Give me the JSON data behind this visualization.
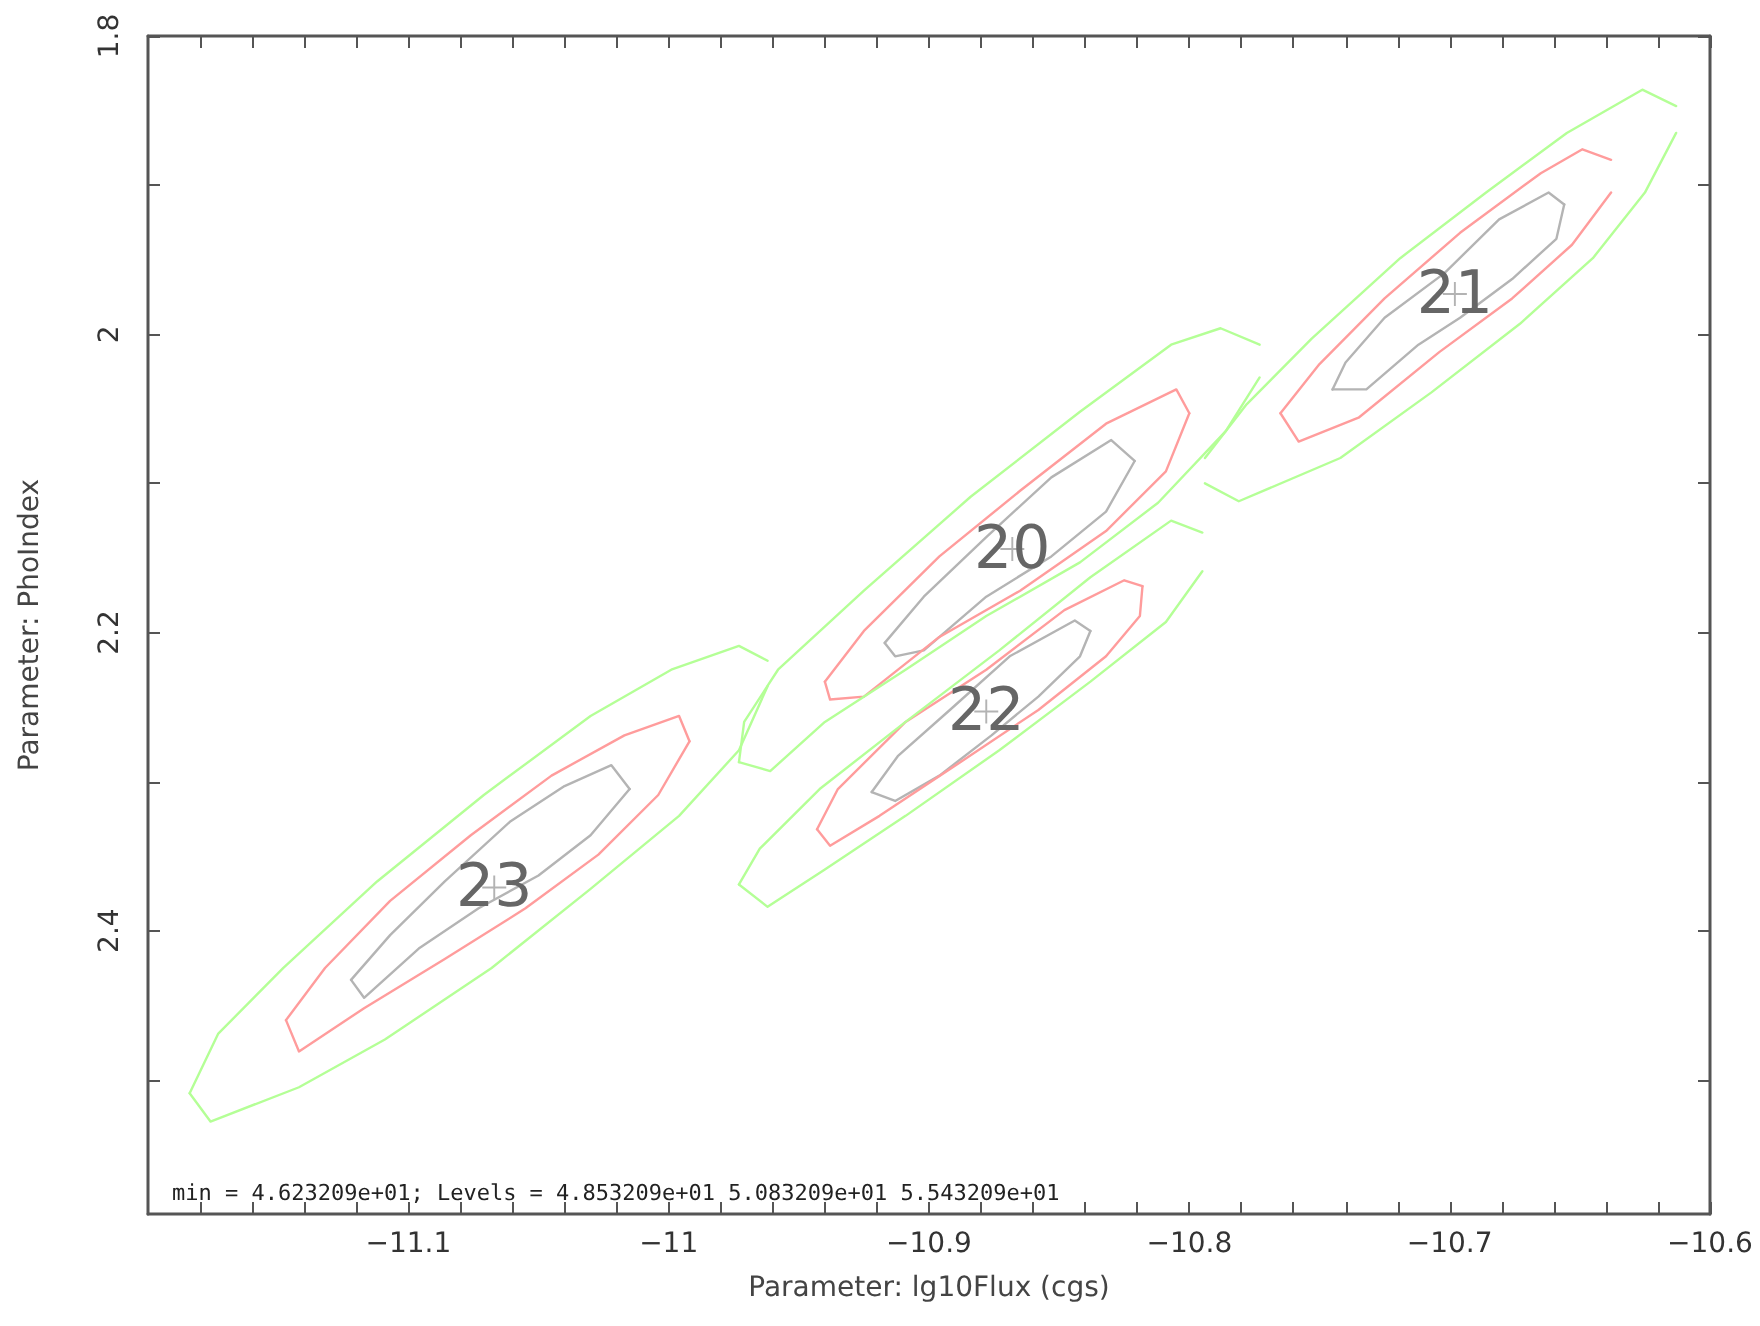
{
  "chart_data": {
    "type": "line",
    "xlabel": "Parameter: lg10Flux (cgs)",
    "ylabel": "Parameter: PhoIndex",
    "marker": "none",
    "grid": false,
    "xlim": [
      -11.2,
      -10.6
    ],
    "ylim": [
      2.59,
      1.8
    ],
    "xticks": [
      {
        "value": -11.18,
        "label": null
      },
      {
        "value": -11.16,
        "label": null
      },
      {
        "value": -11.14,
        "label": null
      },
      {
        "value": -11.12,
        "label": null
      },
      {
        "value": -11.1,
        "label": "−11.1"
      },
      {
        "value": -11.08,
        "label": null
      },
      {
        "value": -11.06,
        "label": null
      },
      {
        "value": -11.04,
        "label": null
      },
      {
        "value": -11.02,
        "label": null
      },
      {
        "value": -11,
        "label": "−11"
      },
      {
        "value": -10.98,
        "label": null
      },
      {
        "value": -10.96,
        "label": null
      },
      {
        "value": -10.94,
        "label": null
      },
      {
        "value": -10.92,
        "label": null
      },
      {
        "value": -10.9,
        "label": "−10.9"
      },
      {
        "value": -10.88,
        "label": null
      },
      {
        "value": -10.86,
        "label": null
      },
      {
        "value": -10.84,
        "label": null
      },
      {
        "value": -10.82,
        "label": null
      },
      {
        "value": -10.8,
        "label": "−10.8"
      },
      {
        "value": -10.78,
        "label": null
      },
      {
        "value": -10.76,
        "label": null
      },
      {
        "value": -10.74,
        "label": null
      },
      {
        "value": -10.72,
        "label": null
      },
      {
        "value": -10.7,
        "label": "−10.7"
      },
      {
        "value": -10.68,
        "label": null
      },
      {
        "value": -10.66,
        "label": null
      },
      {
        "value": -10.64,
        "label": null
      },
      {
        "value": -10.62,
        "label": null
      },
      {
        "value": -10.6,
        "label": "−10.6"
      }
    ],
    "yticks": [
      1.8,
      {
        "value": 1.9,
        "label": null
      },
      2,
      {
        "value": 2.1,
        "label": null
      },
      2.2,
      {
        "value": 2.3,
        "label": null
      },
      2.4,
      {
        "value": 2.5,
        "label": null
      }
    ],
    "series": [
      {
        "color": "#b4b4b4",
        "x": [
          -11.122,
          -11.117,
          -11.096,
          -11.073,
          -11.05,
          -11.03,
          -11.015
        ],
        "values": [
          2.433,
          2.445,
          2.412,
          2.385,
          2.363,
          2.336,
          2.305
        ]
      },
      {
        "color": "#b4b4b4",
        "x": [
          -11.122,
          -11.107,
          -11.086,
          -11.061,
          -11.04,
          -11.022,
          -11.015
        ],
        "values": [
          2.433,
          2.403,
          2.367,
          2.327,
          2.303,
          2.289,
          2.305
        ]
      },
      {
        "color": "#ff9c9c",
        "x": [
          -11.147,
          -11.142,
          -11.117,
          -11.086,
          -11.055,
          -11.027,
          -11.004,
          -10.992
        ],
        "values": [
          2.46,
          2.481,
          2.452,
          2.419,
          2.385,
          2.349,
          2.309,
          2.273
        ]
      },
      {
        "color": "#ff9c9c",
        "x": [
          -11.147,
          -11.132,
          -11.107,
          -11.076,
          -11.045,
          -11.017,
          -10.996,
          -10.992
        ],
        "values": [
          2.46,
          2.425,
          2.38,
          2.336,
          2.296,
          2.269,
          2.256,
          2.273
        ]
      },
      {
        "color": "#b4ff96",
        "x": [
          -11.184,
          -11.176,
          -11.142,
          -11.109,
          -11.068,
          -11.03,
          -10.996,
          -10.973,
          -10.962
        ],
        "values": [
          2.509,
          2.528,
          2.505,
          2.473,
          2.425,
          2.372,
          2.323,
          2.279,
          2.236
        ]
      },
      {
        "color": "#b4ff96",
        "x": [
          -11.184,
          -11.173,
          -11.148,
          -11.112,
          -11.071,
          -11.03,
          -10.999,
          -10.973,
          -10.962
        ],
        "values": [
          2.509,
          2.469,
          2.425,
          2.367,
          2.309,
          2.256,
          2.225,
          2.209,
          2.219
        ]
      },
      {
        "color": "#b4b4b4",
        "x": [
          -10.917,
          -10.913,
          -10.902,
          -10.878,
          -10.853,
          -10.832,
          -10.821
        ],
        "values": [
          2.207,
          2.216,
          2.212,
          2.176,
          2.149,
          2.119,
          2.085
        ]
      },
      {
        "color": "#b4b4b4",
        "x": [
          -10.917,
          -10.902,
          -10.878,
          -10.853,
          -10.83,
          -10.821
        ],
        "values": [
          2.207,
          2.176,
          2.136,
          2.096,
          2.071,
          2.085
        ]
      },
      {
        "color": "#ff9c9c",
        "x": [
          -10.94,
          -10.938,
          -10.925,
          -10.896,
          -10.865,
          -10.832,
          -10.809,
          -10.8
        ],
        "values": [
          2.233,
          2.245,
          2.243,
          2.203,
          2.172,
          2.132,
          2.092,
          2.053
        ]
      },
      {
        "color": "#ff9c9c",
        "x": [
          -10.94,
          -10.925,
          -10.896,
          -10.865,
          -10.832,
          -10.805,
          -10.8
        ],
        "values": [
          2.233,
          2.199,
          2.149,
          2.105,
          2.06,
          2.037,
          2.053
        ]
      },
      {
        "color": "#b4ff96",
        "x": [
          -10.973,
          -10.961,
          -10.94,
          -10.909,
          -10.878,
          -10.842,
          -10.812,
          -10.786,
          -10.773
        ],
        "values": [
          2.287,
          2.293,
          2.26,
          2.225,
          2.189,
          2.153,
          2.113,
          2.065,
          2.029
        ]
      },
      {
        "color": "#b4ff96",
        "x": [
          -10.973,
          -10.971,
          -10.958,
          -10.925,
          -10.884,
          -10.842,
          -10.807,
          -10.788,
          -10.773
        ],
        "values": [
          2.287,
          2.26,
          2.225,
          2.172,
          2.109,
          2.052,
          2.007,
          1.996,
          2.007
        ]
      },
      {
        "color": "#b4b4b4",
        "x": [
          -10.922,
          -10.913,
          -10.896,
          -10.876,
          -10.858,
          -10.842,
          -10.838
        ],
        "values": [
          2.307,
          2.313,
          2.296,
          2.269,
          2.243,
          2.216,
          2.199
        ]
      },
      {
        "color": "#b4b4b4",
        "x": [
          -10.922,
          -10.912,
          -10.892,
          -10.869,
          -10.844,
          -10.838
        ],
        "values": [
          2.307,
          2.283,
          2.252,
          2.216,
          2.192,
          2.199
        ]
      },
      {
        "color": "#ff9c9c",
        "x": [
          -10.943,
          -10.938,
          -10.919,
          -10.888,
          -10.858,
          -10.832,
          -10.819,
          -10.818
        ],
        "values": [
          2.332,
          2.343,
          2.323,
          2.287,
          2.252,
          2.216,
          2.189,
          2.169
        ]
      },
      {
        "color": "#ff9c9c",
        "x": [
          -10.943,
          -10.935,
          -10.909,
          -10.878,
          -10.848,
          -10.825,
          -10.818
        ],
        "values": [
          2.332,
          2.305,
          2.26,
          2.225,
          2.185,
          2.165,
          2.169
        ]
      },
      {
        "color": "#b4ff96",
        "x": [
          -10.973,
          -10.962,
          -10.94,
          -10.909,
          -10.873,
          -10.838,
          -10.809,
          -10.795
        ],
        "values": [
          2.369,
          2.384,
          2.359,
          2.323,
          2.279,
          2.233,
          2.193,
          2.159
        ]
      },
      {
        "color": "#b4ff96",
        "x": [
          -10.973,
          -10.965,
          -10.942,
          -10.909,
          -10.873,
          -10.838,
          -10.807,
          -10.795
        ],
        "values": [
          2.369,
          2.345,
          2.305,
          2.26,
          2.212,
          2.163,
          2.125,
          2.133
        ]
      },
      {
        "color": "#b4b4b4",
        "x": [
          -10.745,
          -10.732,
          -10.712,
          -10.696,
          -10.676,
          -10.659,
          -10.656
        ],
        "values": [
          2.037,
          2.037,
          2.007,
          1.989,
          1.963,
          1.936,
          1.913
        ]
      },
      {
        "color": "#b4b4b4",
        "x": [
          -10.745,
          -10.74,
          -10.725,
          -10.702,
          -10.681,
          -10.662,
          -10.656
        ],
        "values": [
          2.037,
          2.019,
          1.989,
          1.959,
          1.923,
          1.905,
          1.913
        ]
      },
      {
        "color": "#ff9c9c",
        "x": [
          -10.765,
          -10.758,
          -10.735,
          -10.704,
          -10.676,
          -10.653,
          -10.638
        ],
        "values": [
          2.053,
          2.072,
          2.056,
          2.012,
          1.976,
          1.94,
          1.905
        ]
      },
      {
        "color": "#ff9c9c",
        "x": [
          -10.765,
          -10.75,
          -10.725,
          -10.696,
          -10.665,
          -10.649,
          -10.638
        ],
        "values": [
          2.053,
          2.02,
          1.976,
          1.932,
          1.892,
          1.876,
          1.883
        ]
      },
      {
        "color": "#b4ff96",
        "x": [
          -10.794,
          -10.781,
          -10.742,
          -10.707,
          -10.673,
          -10.645,
          -10.625,
          -10.613
        ],
        "values": [
          2.1,
          2.112,
          2.083,
          2.039,
          1.993,
          1.949,
          1.905,
          1.865
        ]
      },
      {
        "color": "#b4ff96",
        "x": [
          -10.794,
          -10.778,
          -10.753,
          -10.719,
          -10.686,
          -10.655,
          -10.626,
          -10.613
        ],
        "values": [
          2.083,
          2.047,
          2.003,
          1.949,
          1.905,
          1.865,
          1.836,
          1.847
        ]
      },
      {
        "type": "scatter",
        "marker": "cross",
        "color": "#a0a0a0",
        "x": [
          -10.868,
          -10.698,
          -10.878,
          -11.067
        ],
        "values": [
          2.144,
          1.973,
          2.253,
          2.371
        ]
      }
    ],
    "annotations": [
      {
        "text": "20",
        "x": -10.868,
        "y": 2.144
      },
      {
        "text": "21",
        "x": -10.698,
        "y": 1.973
      },
      {
        "text": "22",
        "x": -10.878,
        "y": 2.253
      },
      {
        "text": "23",
        "x": -11.067,
        "y": 2.371
      },
      "min = 4.623209e+01; Levels = 4.853209e+01 5.083209e+01 5.543209e+01"
    ]
  }
}
